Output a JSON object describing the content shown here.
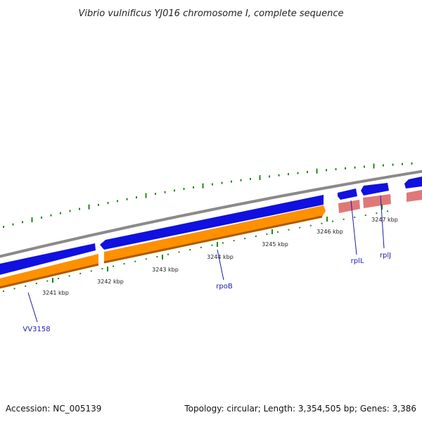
{
  "title": "Vibrio vulnificus YJ016 chromosome I, complete sequence",
  "footer": {
    "accession": "Accession: NC_005139",
    "summary": "Topology: circular; Length: 3,354,505 bp; Genes: 3,386"
  },
  "colors": {
    "backbone": "#8a8a8a",
    "forward_gene": "#1010e0",
    "reverse_gene": "#ff9000",
    "rna_gene": "#e07878",
    "gc_skew_ticks": "#1a8a1a",
    "label_line": "#1a1aa8"
  },
  "scale_ticks": [
    {
      "label": "3241 kbp",
      "kbp": 3241
    },
    {
      "label": "3242 kbp",
      "kbp": 3242
    },
    {
      "label": "3243 kbp",
      "kbp": 3243
    },
    {
      "label": "3244 kbp",
      "kbp": 3244
    },
    {
      "label": "3245 kbp",
      "kbp": 3245
    },
    {
      "label": "3246 kbp",
      "kbp": 3246
    },
    {
      "label": "3247 kbp",
      "kbp": 3247
    }
  ],
  "gene_labels": [
    {
      "name": "VV3158"
    },
    {
      "name": "rpoB"
    },
    {
      "name": "rplL"
    },
    {
      "name": "rplJ"
    }
  ]
}
